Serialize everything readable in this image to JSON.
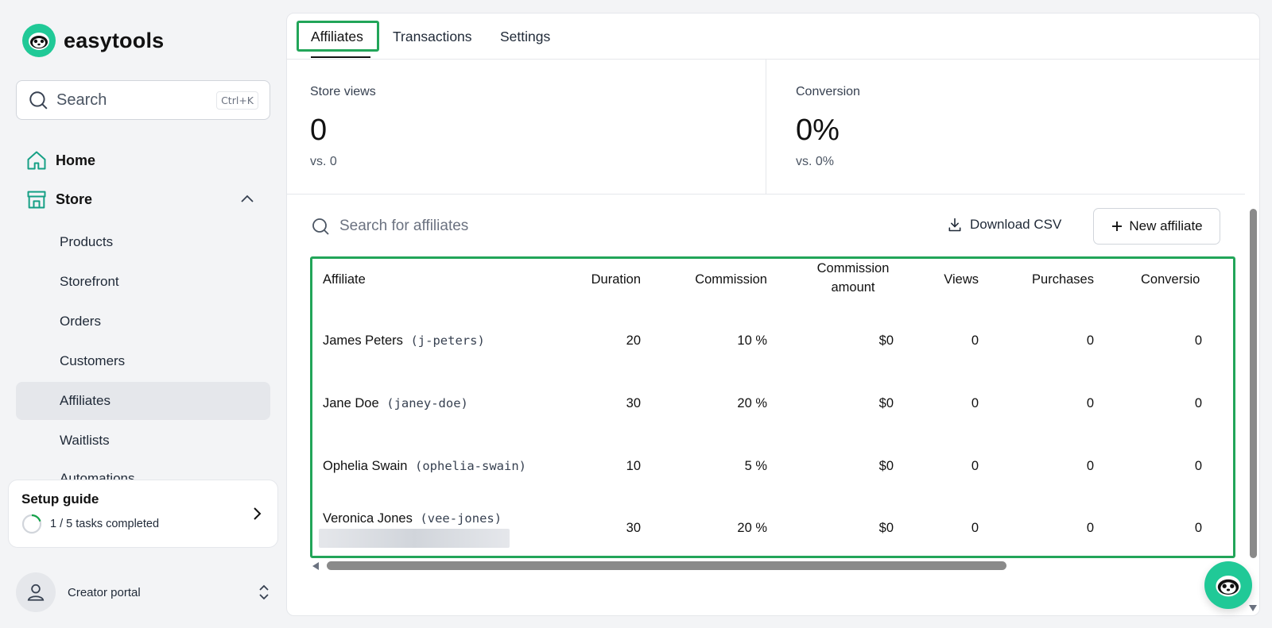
{
  "app": {
    "brand": "easytools"
  },
  "colors": {
    "brand": "#20c997",
    "highlight": "#22a559"
  },
  "sidebar": {
    "search": {
      "placeholder": "Search",
      "shortcut": "Ctrl+K"
    },
    "top_items": [
      {
        "label": "Home",
        "icon": "home-icon"
      },
      {
        "label": "Store",
        "icon": "store-icon",
        "expanded": true
      }
    ],
    "store_items": [
      {
        "label": "Products"
      },
      {
        "label": "Storefront"
      },
      {
        "label": "Orders"
      },
      {
        "label": "Customers"
      },
      {
        "label": "Affiliates",
        "active": true
      },
      {
        "label": "Waitlists"
      },
      {
        "label": "Automations"
      }
    ],
    "setup_guide": {
      "title": "Setup guide",
      "progress_text": "1 / 5 tasks completed",
      "completed": 1,
      "total": 5
    },
    "footer": {
      "label": "Creator portal"
    }
  },
  "tabs": [
    {
      "label": "Affiliates",
      "active": true
    },
    {
      "label": "Transactions"
    },
    {
      "label": "Settings"
    }
  ],
  "stats": [
    {
      "label": "Store views",
      "value": "0",
      "comparison": "vs. 0"
    },
    {
      "label": "Conversion",
      "value": "0%",
      "comparison": "vs. 0%"
    }
  ],
  "toolbar": {
    "search_placeholder": "Search for affiliates",
    "download_label": "Download CSV",
    "new_label": "New affiliate"
  },
  "table": {
    "columns": {
      "affiliate": "Affiliate",
      "duration": "Duration",
      "commission": "Commission",
      "commission_amount_1": "Commission",
      "commission_amount_2": "amount",
      "views": "Views",
      "purchases": "Purchases",
      "conversion": "Conversio"
    },
    "rows": [
      {
        "name": "James Peters",
        "handle": "(j-peters)",
        "duration": "20",
        "commission": "10 %",
        "amount": "$0",
        "views": "0",
        "purchases": "0",
        "conversion": "0"
      },
      {
        "name": "Jane Doe",
        "handle": "(janey-doe)",
        "duration": "30",
        "commission": "20 %",
        "amount": "$0",
        "views": "0",
        "purchases": "0",
        "conversion": "0"
      },
      {
        "name": "Ophelia Swain",
        "handle": "(ophelia-swain)",
        "duration": "10",
        "commission": "5 %",
        "amount": "$0",
        "views": "0",
        "purchases": "0",
        "conversion": "0"
      },
      {
        "name": "Veronica Jones",
        "handle": "(vee-jones)",
        "duration": "30",
        "commission": "20 %",
        "amount": "$0",
        "views": "0",
        "purchases": "0",
        "conversion": "0"
      }
    ]
  }
}
